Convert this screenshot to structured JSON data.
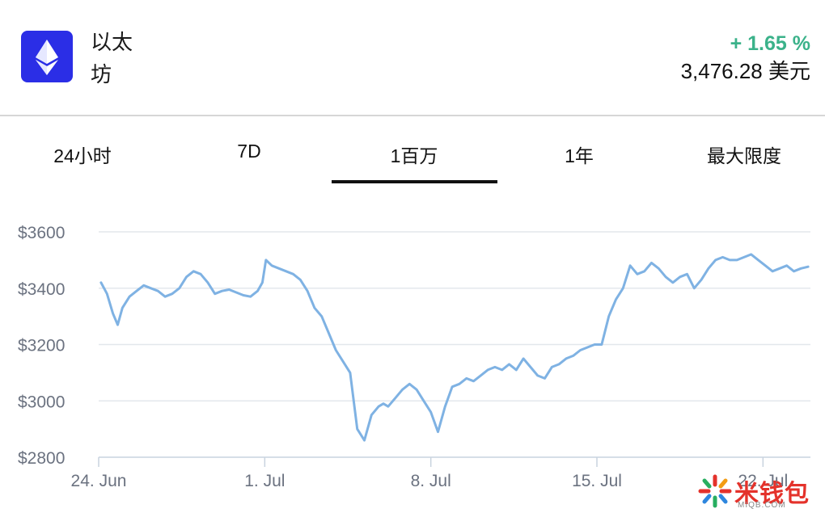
{
  "coin": {
    "name": "以太\n坊",
    "change": "+ 1.65 %",
    "price": "3,476.28 美元",
    "logo_icon": "ethereum-diamond-icon",
    "logo_color": "#2b2ee6"
  },
  "tabs": [
    {
      "label": "24小时",
      "active": false
    },
    {
      "label": "7D",
      "active": false
    },
    {
      "label": "1百万",
      "active": true
    },
    {
      "label": "1年",
      "active": false
    },
    {
      "label": "最大限度",
      "active": false
    }
  ],
  "chart_data": {
    "type": "line",
    "title": "",
    "xlabel": "",
    "ylabel": "",
    "ylim": [
      2800,
      3600
    ],
    "yticks": [
      2800,
      3000,
      3200,
      3400,
      3600
    ],
    "ytick_labels": [
      "$2800",
      "$3000",
      "$3200",
      "$3400",
      "$3600"
    ],
    "xlim": [
      0,
      30
    ],
    "xticks": [
      0,
      7,
      14,
      21,
      28
    ],
    "xtick_labels": [
      "24. Jun",
      "1. Jul",
      "8. Jul",
      "15. Jul",
      "22. Jul"
    ],
    "grid": true,
    "line_color": "#7fb2e3",
    "series": [
      {
        "name": "",
        "x": [
          0.1,
          0.35,
          0.6,
          0.8,
          1.0,
          1.3,
          1.6,
          1.9,
          2.2,
          2.5,
          2.8,
          3.1,
          3.4,
          3.7,
          4.0,
          4.3,
          4.6,
          4.9,
          5.2,
          5.5,
          5.8,
          6.1,
          6.4,
          6.7,
          6.9,
          7.05,
          7.3,
          7.6,
          7.9,
          8.2,
          8.5,
          8.8,
          9.1,
          9.4,
          9.7,
          10.0,
          10.3,
          10.6,
          10.9,
          11.2,
          11.5,
          11.8,
          12.0,
          12.2,
          12.5,
          12.8,
          13.1,
          13.4,
          13.7,
          14.0,
          14.3,
          14.6,
          14.9,
          15.2,
          15.5,
          15.8,
          16.1,
          16.4,
          16.7,
          17.0,
          17.3,
          17.6,
          17.9,
          18.2,
          18.5,
          18.8,
          19.1,
          19.4,
          19.7,
          20.0,
          20.3,
          20.6,
          20.9,
          21.2,
          21.5,
          21.8,
          22.1,
          22.4,
          22.7,
          23.0,
          23.3,
          23.6,
          23.9,
          24.2,
          24.5,
          24.8,
          25.1,
          25.4,
          25.7,
          26.0,
          26.3,
          26.6,
          26.9,
          27.2,
          27.5,
          27.8,
          28.1,
          28.4,
          28.7,
          29.0,
          29.3,
          29.6,
          29.9
        ],
        "y": [
          3420,
          3380,
          3310,
          3270,
          3330,
          3370,
          3390,
          3410,
          3400,
          3390,
          3370,
          3380,
          3400,
          3440,
          3460,
          3450,
          3420,
          3380,
          3390,
          3395,
          3385,
          3375,
          3370,
          3390,
          3420,
          3500,
          3480,
          3470,
          3460,
          3450,
          3430,
          3390,
          3330,
          3300,
          3240,
          3180,
          3140,
          3100,
          2900,
          2860,
          2950,
          2980,
          2990,
          2980,
          3010,
          3040,
          3060,
          3040,
          3000,
          2960,
          2890,
          2980,
          3050,
          3060,
          3080,
          3070,
          3090,
          3110,
          3120,
          3110,
          3130,
          3110,
          3150,
          3120,
          3090,
          3080,
          3120,
          3130,
          3150,
          3160,
          3180,
          3190,
          3200,
          3200,
          3300,
          3360,
          3400,
          3480,
          3450,
          3460,
          3490,
          3470,
          3440,
          3420,
          3440,
          3450,
          3400,
          3430,
          3470,
          3500,
          3510,
          3500,
          3500,
          3510,
          3520,
          3500,
          3480,
          3460,
          3470,
          3480,
          3460,
          3470,
          3476
        ]
      }
    ]
  },
  "watermark": {
    "text": "米钱包",
    "sub": "MIQB.COM",
    "icon": "starburst-logo-icon"
  }
}
